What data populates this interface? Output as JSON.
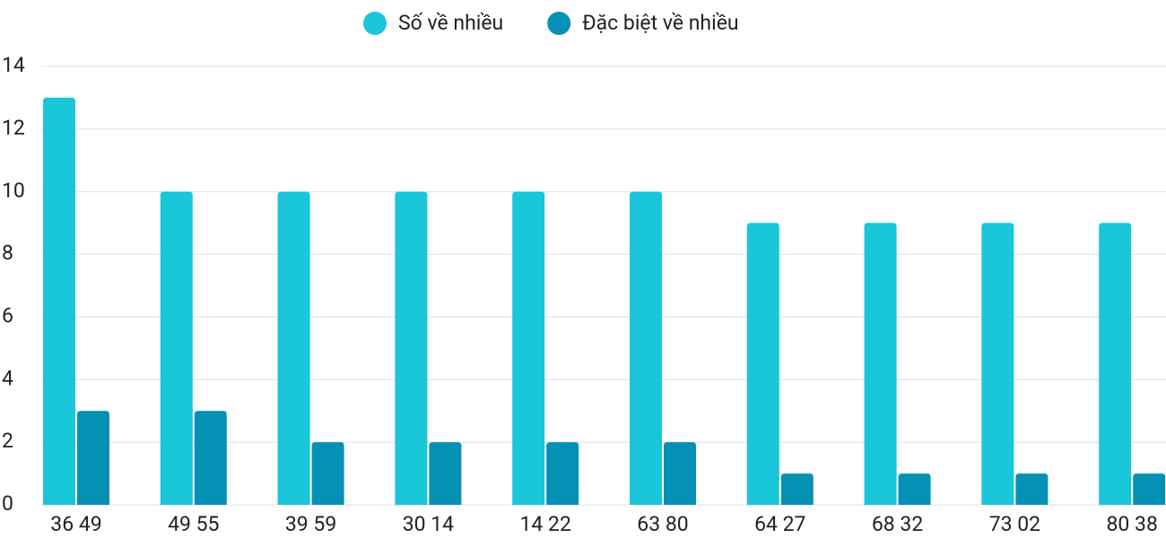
{
  "chart_data": {
    "type": "bar",
    "categories": [
      "36 49",
      "49 55",
      "39 59",
      "30 14",
      "14 22",
      "63 80",
      "64 27",
      "68 32",
      "73 02",
      "80 38"
    ],
    "series": [
      {
        "name": "Số về nhiều",
        "color": "#1ac6d9",
        "values": [
          13,
          10,
          10,
          10,
          10,
          10,
          9,
          9,
          9,
          9
        ]
      },
      {
        "name": "Đặc biệt về nhiều",
        "color": "#0591b5",
        "values": [
          3,
          3,
          2,
          2,
          2,
          2,
          1,
          1,
          1,
          1
        ]
      }
    ],
    "ylim": [
      0,
      14
    ],
    "yticks": [
      0,
      2,
      4,
      6,
      8,
      10,
      12,
      14
    ],
    "grid": true,
    "legend": "top"
  }
}
